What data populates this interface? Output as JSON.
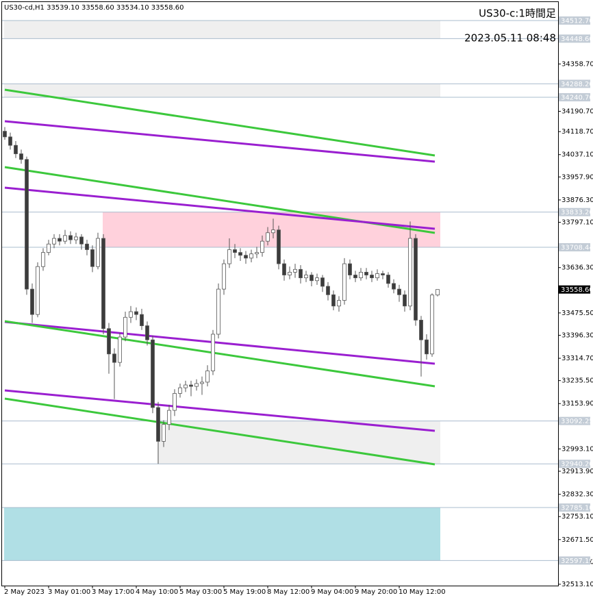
{
  "chart_data": {
    "type": "candlestick",
    "header": "US30-cd,H1  33539.10 33558.60 33534.10 33558.60",
    "title": "US30-c:1時間足",
    "subtitle": "2023.05.11 08:48",
    "up_color": "#ffffff",
    "down_color": "#3c3c3c",
    "wick_color": "#555555",
    "categories": [
      "2 May 2023",
      null,
      null,
      null,
      null,
      null,
      null,
      null,
      "3 May 01:00",
      null,
      null,
      null,
      null,
      null,
      null,
      null,
      "3 May 17:00",
      null,
      null,
      null,
      null,
      null,
      null,
      null,
      "4 May 10:00",
      null,
      null,
      null,
      null,
      null,
      null,
      null,
      "5 May 03:00",
      null,
      null,
      null,
      null,
      null,
      null,
      null,
      "5 May 19:00",
      null,
      null,
      null,
      null,
      null,
      null,
      null,
      "8 May 12:00",
      null,
      null,
      null,
      null,
      null,
      null,
      null,
      "9 May 04:00",
      null,
      null,
      null,
      null,
      null,
      null,
      null,
      "9 May 20:00",
      null,
      null,
      null,
      null,
      null,
      null,
      null,
      "10 May 12:00",
      null,
      null,
      null,
      null,
      null,
      null,
      null
    ],
    "open": [
      34120,
      34100,
      34070,
      34040,
      34020,
      33560,
      33470,
      33640,
      33690,
      33720,
      33740,
      33730,
      33750,
      33735,
      33745,
      33720,
      33700,
      33640,
      33740,
      33420,
      33330,
      33300,
      33390,
      33460,
      33480,
      33470,
      33430,
      33380,
      33140,
      33020,
      33080,
      33130,
      33190,
      33210,
      33220,
      33215,
      33225,
      33230,
      33270,
      33400,
      33560,
      33650,
      33700,
      33690,
      33680,
      33670,
      33685,
      33690,
      33730,
      33760,
      33770,
      33650,
      33610,
      33620,
      33630,
      33600,
      33610,
      33590,
      33600,
      33570,
      33540,
      33500,
      33520,
      33650,
      33610,
      33600,
      33620,
      33610,
      33600,
      33615,
      33610,
      33580,
      33560,
      33540,
      33500,
      33740,
      33450,
      33380,
      33330,
      33539.1
    ],
    "high": [
      34135,
      34115,
      34085,
      34055,
      34030,
      33580,
      33655,
      33705,
      33735,
      33755,
      33755,
      33770,
      33765,
      33760,
      33755,
      33735,
      33715,
      33760,
      33755,
      33440,
      33350,
      33405,
      33480,
      33500,
      33495,
      33490,
      33445,
      33395,
      33160,
      33095,
      33150,
      33205,
      33225,
      33235,
      33235,
      33240,
      33250,
      33290,
      33415,
      33580,
      33665,
      33740,
      33720,
      33705,
      33695,
      33700,
      33710,
      33750,
      33780,
      33810,
      33785,
      33665,
      33640,
      33650,
      33645,
      33625,
      33620,
      33615,
      33610,
      33585,
      33555,
      33535,
      33670,
      33665,
      33625,
      33635,
      33635,
      33625,
      33630,
      33625,
      33620,
      33595,
      33575,
      33555,
      33800,
      33755,
      33465,
      33400,
      33545,
      33558.6
    ],
    "low": [
      34090,
      34055,
      34025,
      34005,
      33540,
      33440,
      33460,
      33625,
      33680,
      33705,
      33715,
      33720,
      33720,
      33720,
      33700,
      33680,
      33620,
      33630,
      33400,
      33260,
      33170,
      33285,
      33375,
      33440,
      33450,
      33415,
      33360,
      33120,
      32940,
      33000,
      33060,
      33110,
      33175,
      33195,
      33180,
      33200,
      33185,
      33215,
      33255,
      33385,
      33540,
      33635,
      33670,
      33660,
      33650,
      33655,
      33670,
      33675,
      33715,
      33740,
      33630,
      33590,
      33595,
      33600,
      33580,
      33585,
      33570,
      33575,
      33550,
      33520,
      33485,
      33480,
      33505,
      33595,
      33585,
      33590,
      33595,
      33585,
      33590,
      33595,
      33565,
      33545,
      33515,
      33480,
      33485,
      33430,
      33250,
      33310,
      33320,
      33534.1
    ],
    "close": [
      34100,
      34070,
      34040,
      34020,
      33560,
      33470,
      33640,
      33690,
      33720,
      33740,
      33730,
      33750,
      33735,
      33745,
      33720,
      33700,
      33640,
      33740,
      33420,
      33330,
      33300,
      33390,
      33460,
      33480,
      33470,
      33430,
      33380,
      33140,
      33020,
      33080,
      33130,
      33190,
      33210,
      33220,
      33215,
      33225,
      33230,
      33270,
      33400,
      33560,
      33650,
      33700,
      33690,
      33680,
      33670,
      33685,
      33690,
      33730,
      33760,
      33770,
      33650,
      33610,
      33620,
      33630,
      33600,
      33610,
      33590,
      33600,
      33570,
      33540,
      33500,
      33520,
      33650,
      33610,
      33600,
      33620,
      33610,
      33600,
      33615,
      33610,
      33580,
      33560,
      33540,
      33500,
      33740,
      33450,
      33380,
      33330,
      33539.1,
      33558.6
    ],
    "ylim": [
      32508.2,
      34578.3
    ],
    "yticks": [
      {
        "value": 34358.7,
        "label": "34358.70"
      },
      {
        "value": 34190.7,
        "label": "34190.70"
      },
      {
        "value": 34118.7,
        "label": "34118.70"
      },
      {
        "value": 34037.1,
        "label": "34037.10"
      },
      {
        "value": 33957.9,
        "label": "33957.90"
      },
      {
        "value": 33876.3,
        "label": "33876.30"
      },
      {
        "value": 33797.1,
        "label": "33797.10"
      },
      {
        "value": 33636.3,
        "label": "33636.30"
      },
      {
        "value": 33475.5,
        "label": "33475.50"
      },
      {
        "value": 33396.3,
        "label": "33396.30"
      },
      {
        "value": 33314.7,
        "label": "33314.70"
      },
      {
        "value": 33235.5,
        "label": "33235.50"
      },
      {
        "value": 33153.9,
        "label": "33153.90"
      },
      {
        "value": 32993.1,
        "label": "32993.10"
      },
      {
        "value": 32913.9,
        "label": "32913.90"
      },
      {
        "value": 32832.3,
        "label": "32832.30"
      },
      {
        "value": 32753.1,
        "label": "32753.10"
      },
      {
        "value": 32671.5,
        "label": "32671.50"
      },
      {
        "value": 32592.3,
        "label": "32592.30"
      },
      {
        "value": 32513.1,
        "label": "32513.10"
      }
    ],
    "zones": [
      {
        "top": {
          "value": 34512.7,
          "label": "34512.70"
        },
        "bottom": {
          "value": 34448.6,
          "label": "34448.60"
        },
        "color": "#efefef",
        "start": 0
      },
      {
        "top": {
          "value": 34288.2,
          "label": "34288.20"
        },
        "bottom": {
          "value": 34240.7,
          "label": "34240.70"
        },
        "color": "#efefef",
        "start": 0
      },
      {
        "top": {
          "value": 33833.2,
          "label": "33833.20"
        },
        "bottom": {
          "value": 33708.44,
          "label": "33708.44"
        },
        "color": "#ffd1dc",
        "start": 18
      },
      {
        "top": {
          "value": 33092.25,
          "label": "33092.25"
        },
        "bottom": {
          "value": 32940.2,
          "label": "32940.20"
        },
        "color": "#efefef",
        "start": 28
      },
      {
        "top": {
          "value": 32785.1,
          "label": "32785.10"
        },
        "bottom": {
          "value": 32597.19,
          "label": "32597.19"
        },
        "color": "#b0dfe5",
        "start": 0
      }
    ],
    "last_price": {
      "value": 33558.6,
      "label": "33558.60"
    },
    "trendlines": [
      {
        "color": "#3cc83c",
        "start": [
          0,
          34267.2
        ],
        "end": [
          78.5,
          34034.0
        ]
      },
      {
        "color": "#9a1fd0",
        "start": [
          0,
          34155.5
        ],
        "end": [
          78.5,
          34012.1
        ]
      },
      {
        "color": "#3cc83c",
        "start": [
          0,
          33992.7
        ],
        "end": [
          78.5,
          33759.5
        ]
      },
      {
        "color": "#9a1fd0",
        "start": [
          0,
          33919.8
        ],
        "end": [
          78.5,
          33774.0
        ]
      },
      {
        "color": "#9a1fd0",
        "start": [
          0,
          33443.6
        ],
        "end": [
          78.5,
          33295.4
        ]
      },
      {
        "color": "#3cc83c",
        "start": [
          0,
          33446.1
        ],
        "end": [
          78.5,
          33215.2
        ]
      },
      {
        "color": "#9a1fd0",
        "start": [
          0,
          33200.7
        ],
        "end": [
          78.5,
          33057.3
        ]
      },
      {
        "color": "#3cc83c",
        "start": [
          0,
          33171.5
        ],
        "end": [
          78.5,
          32938.3
        ]
      }
    ]
  }
}
